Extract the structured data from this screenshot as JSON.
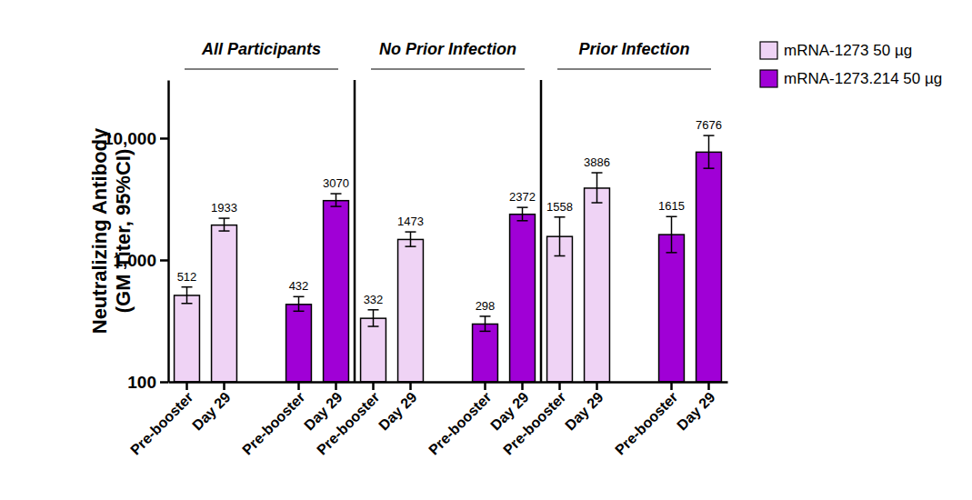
{
  "chart_data": {
    "type": "bar",
    "log": "y",
    "grid": false,
    "legend": "upper right",
    "data_labels": true,
    "ylabel": "Neutralizing Antibody\n(GM Titer, 95%CI)",
    "panels": [
      "All Participants",
      "No Prior Infection",
      "Prior Infection"
    ],
    "categories": [
      "Pre-booster",
      "Day 29",
      "Pre-booster",
      "Day 29",
      "Pre-booster",
      "Day 29",
      "Pre-booster",
      "Day 29",
      "Pre-booster",
      "Day 29",
      "Pre-booster",
      "Day 29"
    ],
    "ylim": [
      100,
      30000
    ],
    "yticks": [
      100,
      {
        "value": 1000,
        "label": "1,000"
      },
      {
        "value": 10000,
        "label": "10,000"
      }
    ],
    "series": [
      {
        "name": "mRNA-1273 50 µg",
        "color": "#efd3f5",
        "values": [
          512,
          1933,
          null,
          null,
          332,
          1473,
          null,
          null,
          1558,
          3886,
          null,
          null
        ],
        "ci_low": [
          440,
          1730,
          null,
          null,
          285,
          1290,
          null,
          null,
          1080,
          2950,
          null,
          null
        ],
        "ci_high": [
          600,
          2200,
          null,
          null,
          390,
          1700,
          null,
          null,
          2250,
          5200,
          null,
          null
        ]
      },
      {
        "name": "mRNA-1273.214 50 µg",
        "color": "#a000d6",
        "values": [
          null,
          null,
          432,
          3070,
          null,
          null,
          298,
          2372,
          null,
          null,
          1615,
          7676
        ],
        "ci_low": [
          null,
          null,
          380,
          2750,
          null,
          null,
          260,
          2100,
          null,
          null,
          1150,
          5650
        ],
        "ci_high": [
          null,
          null,
          500,
          3500,
          null,
          null,
          345,
          2700,
          null,
          null,
          2270,
          10500
        ]
      }
    ]
  }
}
